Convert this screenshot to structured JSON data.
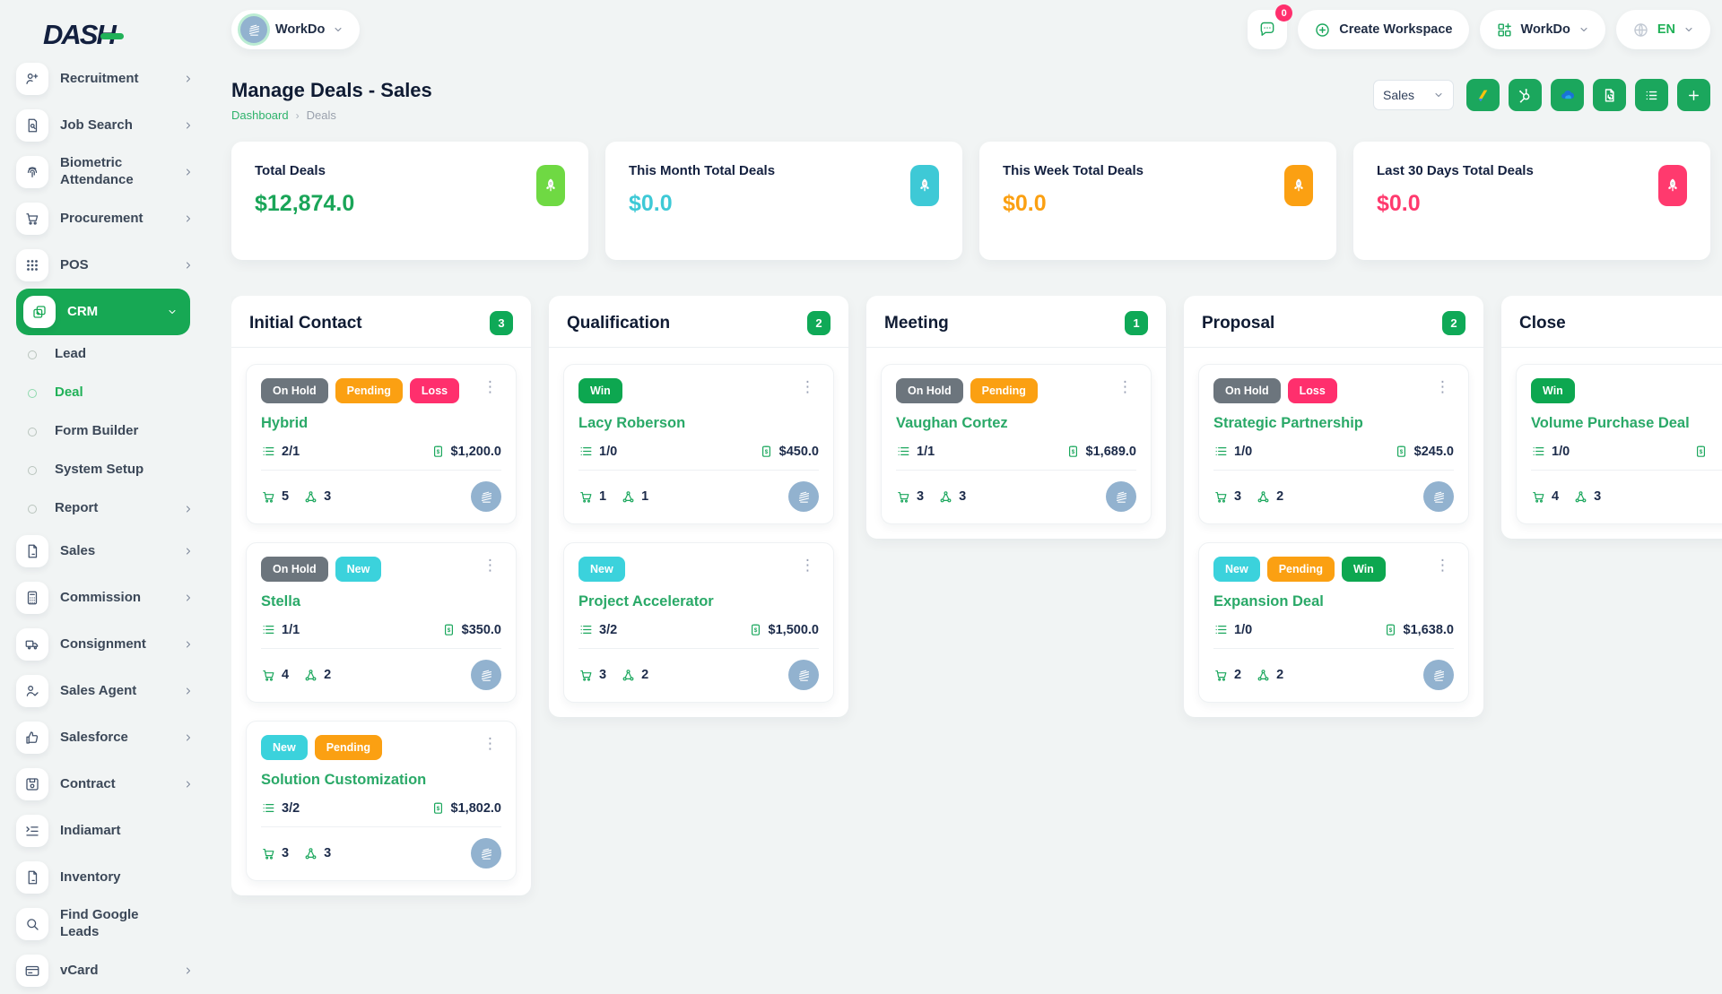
{
  "brand": {
    "logo_text": "DASH"
  },
  "topbar": {
    "workspace_button_label": "WorkDo",
    "messages_badge": "0",
    "create_workspace_label": "Create Workspace",
    "apps_button_label": "WorkDo",
    "language": "EN"
  },
  "sidebar": {
    "items": [
      {
        "label": "Recruitment",
        "icon": "person-plus",
        "expandable": true
      },
      {
        "label": "Job Search",
        "icon": "document-search",
        "expandable": true
      },
      {
        "label": "Biometric Attendance",
        "icon": "fingerprint",
        "expandable": true
      },
      {
        "label": "Procurement",
        "icon": "cart",
        "expandable": true
      },
      {
        "label": "POS",
        "icon": "grid-dots",
        "expandable": true
      },
      {
        "label": "CRM",
        "icon": "squares",
        "expandable": true,
        "expanded": true,
        "active": true,
        "submenu": [
          {
            "label": "Lead"
          },
          {
            "label": "Deal",
            "active": true
          },
          {
            "label": "Form Builder"
          },
          {
            "label": "System Setup"
          },
          {
            "label": "Report",
            "expandable": true
          }
        ]
      },
      {
        "label": "Sales",
        "icon": "file",
        "expandable": true
      },
      {
        "label": "Commission",
        "icon": "calculator",
        "expandable": true
      },
      {
        "label": "Consignment",
        "icon": "truck",
        "expandable": true
      },
      {
        "label": "Sales Agent",
        "icon": "person-check",
        "expandable": true
      },
      {
        "label": "Salesforce",
        "icon": "thumbs-up",
        "expandable": true
      },
      {
        "label": "Contract",
        "icon": "floppy",
        "expandable": true
      },
      {
        "label": "Indiamart",
        "icon": "indent-list",
        "expandable": false
      },
      {
        "label": "Inventory",
        "icon": "file",
        "expandable": false
      },
      {
        "label": "Find Google Leads",
        "icon": "search",
        "expandable": false
      },
      {
        "label": "vCard",
        "icon": "credit-card",
        "expandable": true
      }
    ]
  },
  "page": {
    "title": "Manage Deals - Sales",
    "breadcrumb": [
      "Dashboard",
      "Deals"
    ]
  },
  "toolbar": {
    "pipeline_selected": "Sales",
    "buttons": [
      {
        "name": "adsense"
      },
      {
        "name": "hubspot"
      },
      {
        "name": "onedrive"
      },
      {
        "name": "document-sync"
      },
      {
        "name": "list"
      },
      {
        "name": "plus"
      }
    ]
  },
  "stats": [
    {
      "label": "Total Deals",
      "value": "$12,874.0",
      "icon": "rocket",
      "icon_bg": "#6fd943",
      "value_color": "#1aa558"
    },
    {
      "label": "This Month Total Deals",
      "value": "$0.0",
      "icon": "rocket",
      "icon_bg": "#3ec9d6",
      "value_color": "#3ec9d6"
    },
    {
      "label": "This Week Total Deals",
      "value": "$0.0",
      "icon": "rocket",
      "icon_bg": "#fba012",
      "value_color": "#fba012"
    },
    {
      "label": "Last 30 Days Total Deals",
      "value": "$0.0",
      "icon": "rocket",
      "icon_bg": "#ff3a6e",
      "value_color": "#ff3a6e"
    }
  ],
  "board": {
    "label_colors": {
      "On Hold": "#6c757d",
      "Pending": "#fba012",
      "Loss": "#ff2f6d",
      "New": "#3bd2dc",
      "Win": "#0da750"
    },
    "columns": [
      {
        "name": "Initial Contact",
        "count": "3",
        "cards": [
          {
            "labels": [
              "On Hold",
              "Pending",
              "Loss"
            ],
            "title": "Hybrid",
            "tasks": "2/1",
            "amount": "$1,200.0",
            "products": "5",
            "sources": "3"
          },
          {
            "labels": [
              "On Hold",
              "New"
            ],
            "title": "Stella",
            "tasks": "1/1",
            "amount": "$350.0",
            "products": "4",
            "sources": "2"
          },
          {
            "labels": [
              "New",
              "Pending"
            ],
            "title": "Solution Customization",
            "tasks": "3/2",
            "amount": "$1,802.0",
            "products": "3",
            "sources": "3"
          }
        ]
      },
      {
        "name": "Qualification",
        "count": "2",
        "cards": [
          {
            "labels": [
              "Win"
            ],
            "title": "Lacy Roberson",
            "tasks": "1/0",
            "amount": "$450.0",
            "products": "1",
            "sources": "1"
          },
          {
            "labels": [
              "New"
            ],
            "title": "Project Accelerator",
            "tasks": "3/2",
            "amount": "$1,500.0",
            "products": "3",
            "sources": "2"
          }
        ]
      },
      {
        "name": "Meeting",
        "count": "1",
        "cards": [
          {
            "labels": [
              "On Hold",
              "Pending"
            ],
            "title": "Vaughan Cortez",
            "tasks": "1/1",
            "amount": "$1,689.0",
            "products": "3",
            "sources": "3"
          }
        ]
      },
      {
        "name": "Proposal",
        "count": "2",
        "cards": [
          {
            "labels": [
              "On Hold",
              "Loss"
            ],
            "title": "Strategic Partnership",
            "tasks": "1/0",
            "amount": "$245.0",
            "products": "3",
            "sources": "2"
          },
          {
            "labels": [
              "New",
              "Pending",
              "Win"
            ],
            "title": "Expansion Deal",
            "tasks": "1/0",
            "amount": "$1,638.0",
            "products": "2",
            "sources": "2"
          }
        ]
      },
      {
        "name": "Close",
        "count": "",
        "cards": [
          {
            "labels": [
              "Win"
            ],
            "title": "Volume Purchase Deal",
            "tasks": "1/0",
            "amount": "",
            "products": "4",
            "sources": "3"
          }
        ]
      }
    ]
  }
}
